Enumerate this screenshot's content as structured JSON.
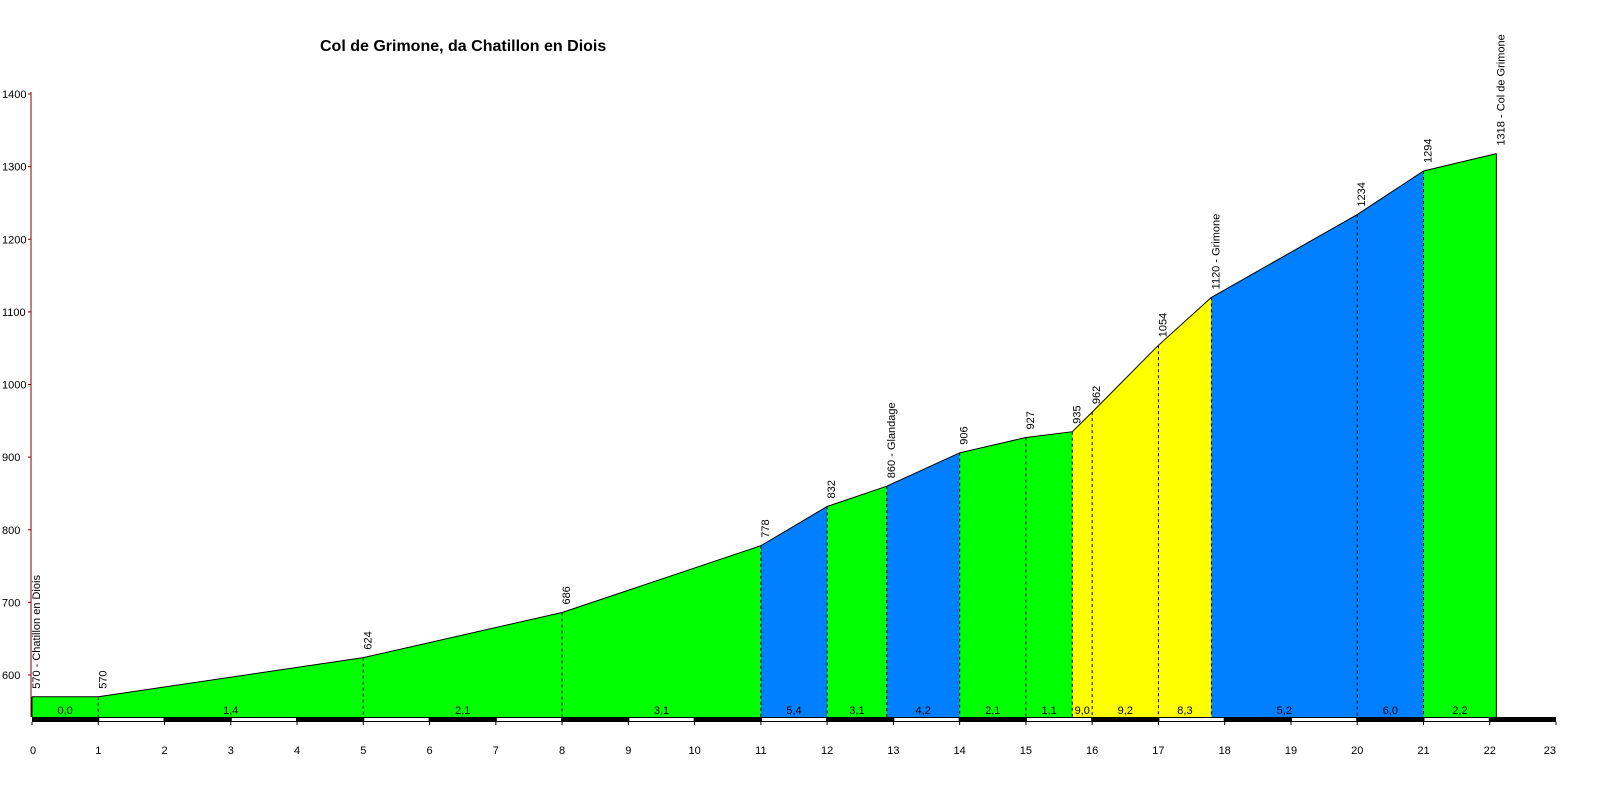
{
  "chart_data": {
    "type": "area",
    "title": "Col de Grimone, da Chatillon en Diois",
    "xlabel": "",
    "ylabel": "",
    "xlim": [
      0,
      23
    ],
    "ylim": [
      540,
      1400
    ],
    "x_ticks": [
      0,
      1,
      2,
      3,
      4,
      5,
      6,
      7,
      8,
      9,
      10,
      11,
      12,
      13,
      14,
      15,
      16,
      17,
      18,
      19,
      20,
      21,
      22,
      23
    ],
    "y_ticks": [
      600,
      700,
      800,
      900,
      1000,
      1100,
      1200,
      1300,
      1400
    ],
    "grid": false,
    "legend": "none",
    "colors": {
      "easy": "#00ff00",
      "medium": "#0080ff",
      "hard": "#ffff00",
      "outline": "#000000",
      "y_axis": "#800000"
    },
    "profile": [
      {
        "x": 0.0,
        "y": 570,
        "label": "570 - Chatillon en Diois"
      },
      {
        "x": 1.0,
        "y": 570,
        "label": "570"
      },
      {
        "x": 5.0,
        "y": 624,
        "label": "624"
      },
      {
        "x": 8.0,
        "y": 686,
        "label": "686"
      },
      {
        "x": 11.0,
        "y": 778,
        "label": "778"
      },
      {
        "x": 12.0,
        "y": 832,
        "label": "832"
      },
      {
        "x": 12.9,
        "y": 860,
        "label": "860 - Glandage"
      },
      {
        "x": 14.0,
        "y": 906,
        "label": "906"
      },
      {
        "x": 15.0,
        "y": 927,
        "label": "927"
      },
      {
        "x": 15.7,
        "y": 935,
        "label": "935"
      },
      {
        "x": 16.0,
        "y": 962,
        "label": "962"
      },
      {
        "x": 17.0,
        "y": 1054,
        "label": "1054"
      },
      {
        "x": 17.8,
        "y": 1120,
        "label": "1120 - Grimone"
      },
      {
        "x": 20.0,
        "y": 1234,
        "label": "1234"
      },
      {
        "x": 21.0,
        "y": 1294,
        "label": "1294"
      },
      {
        "x": 22.1,
        "y": 1318,
        "label": "1318 - Col de Grimone"
      }
    ],
    "segments": [
      {
        "from": 0.0,
        "to": 1.0,
        "gradient": "0,0",
        "color": "easy"
      },
      {
        "from": 1.0,
        "to": 5.0,
        "gradient": "1,4",
        "color": "easy"
      },
      {
        "from": 5.0,
        "to": 8.0,
        "gradient": "2,1",
        "color": "easy"
      },
      {
        "from": 8.0,
        "to": 11.0,
        "gradient": "3,1",
        "color": "easy"
      },
      {
        "from": 11.0,
        "to": 12.0,
        "gradient": "5,4",
        "color": "medium"
      },
      {
        "from": 12.0,
        "to": 12.9,
        "gradient": "3,1",
        "color": "easy"
      },
      {
        "from": 12.9,
        "to": 14.0,
        "gradient": "4,2",
        "color": "medium"
      },
      {
        "from": 14.0,
        "to": 15.0,
        "gradient": "2,1",
        "color": "easy"
      },
      {
        "from": 15.0,
        "to": 15.7,
        "gradient": "1,1",
        "color": "easy"
      },
      {
        "from": 15.7,
        "to": 16.0,
        "gradient": "9,0",
        "color": "hard"
      },
      {
        "from": 16.0,
        "to": 17.0,
        "gradient": "9,2",
        "color": "hard"
      },
      {
        "from": 17.0,
        "to": 17.8,
        "gradient": "8,3",
        "color": "hard"
      },
      {
        "from": 17.8,
        "to": 20.0,
        "gradient": "5,2",
        "color": "medium"
      },
      {
        "from": 20.0,
        "to": 21.0,
        "gradient": "6,0",
        "color": "medium"
      },
      {
        "from": 21.0,
        "to": 22.1,
        "gradient": "2,2",
        "color": "easy"
      }
    ]
  }
}
